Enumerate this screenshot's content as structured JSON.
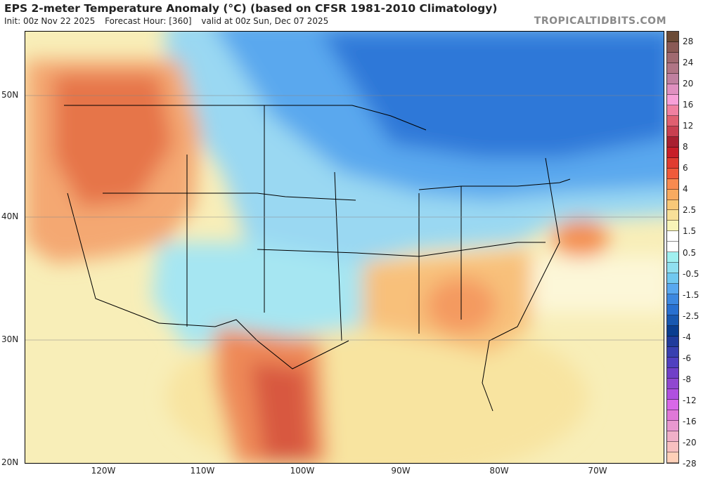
{
  "header": {
    "title": "EPS 2-meter Temperature Anomaly (°C) (based on CFSR 1981-2010 Climatology)",
    "init": "Init: 00z Nov 22 2025",
    "forecast_hour": "Forecast Hour: [360]",
    "valid": "valid at 00z Sun, Dec 07 2025",
    "brand": "TROPICALTIDBITS.COM"
  },
  "axes": {
    "lat_labels": [
      "50N",
      "40N",
      "30N",
      "20N"
    ],
    "lon_labels": [
      "120W",
      "110W",
      "100W",
      "90W",
      "80W",
      "70W"
    ]
  },
  "colorbar": {
    "labels": [
      "28",
      "24",
      "20",
      "16",
      "12",
      "8",
      "6",
      "4",
      "2.5",
      "1.5",
      "0.5",
      "-0.5",
      "-1.5",
      "-2.5",
      "-4",
      "-6",
      "-8",
      "-12",
      "-16",
      "-20",
      "-28"
    ],
    "colors": [
      "#6b4a35",
      "#8a5a55",
      "#a06a70",
      "#b07585",
      "#c080a0",
      "#e090c0",
      "#f8a0d8",
      "#f080a0",
      "#e06070",
      "#c84050",
      "#a82030",
      "#c81e28",
      "#e03c30",
      "#f05a3a",
      "#f88a50",
      "#f8aa60",
      "#f8c878",
      "#f8e098",
      "#f8f4b8",
      "#ffffff",
      "#ffffff",
      "#a0f0f0",
      "#90e0f0",
      "#70c8f0",
      "#58a8f0",
      "#3c88e0",
      "#2870d0",
      "#1858b0",
      "#0a3e90",
      "#203c9c",
      "#3840b0",
      "#5040c0",
      "#7040c8",
      "#9048d0",
      "#b050e0",
      "#d868e8",
      "#e078d8",
      "#e898d0",
      "#f0b0c8",
      "#f8c0c0",
      "#ffd0b8"
    ]
  }
}
